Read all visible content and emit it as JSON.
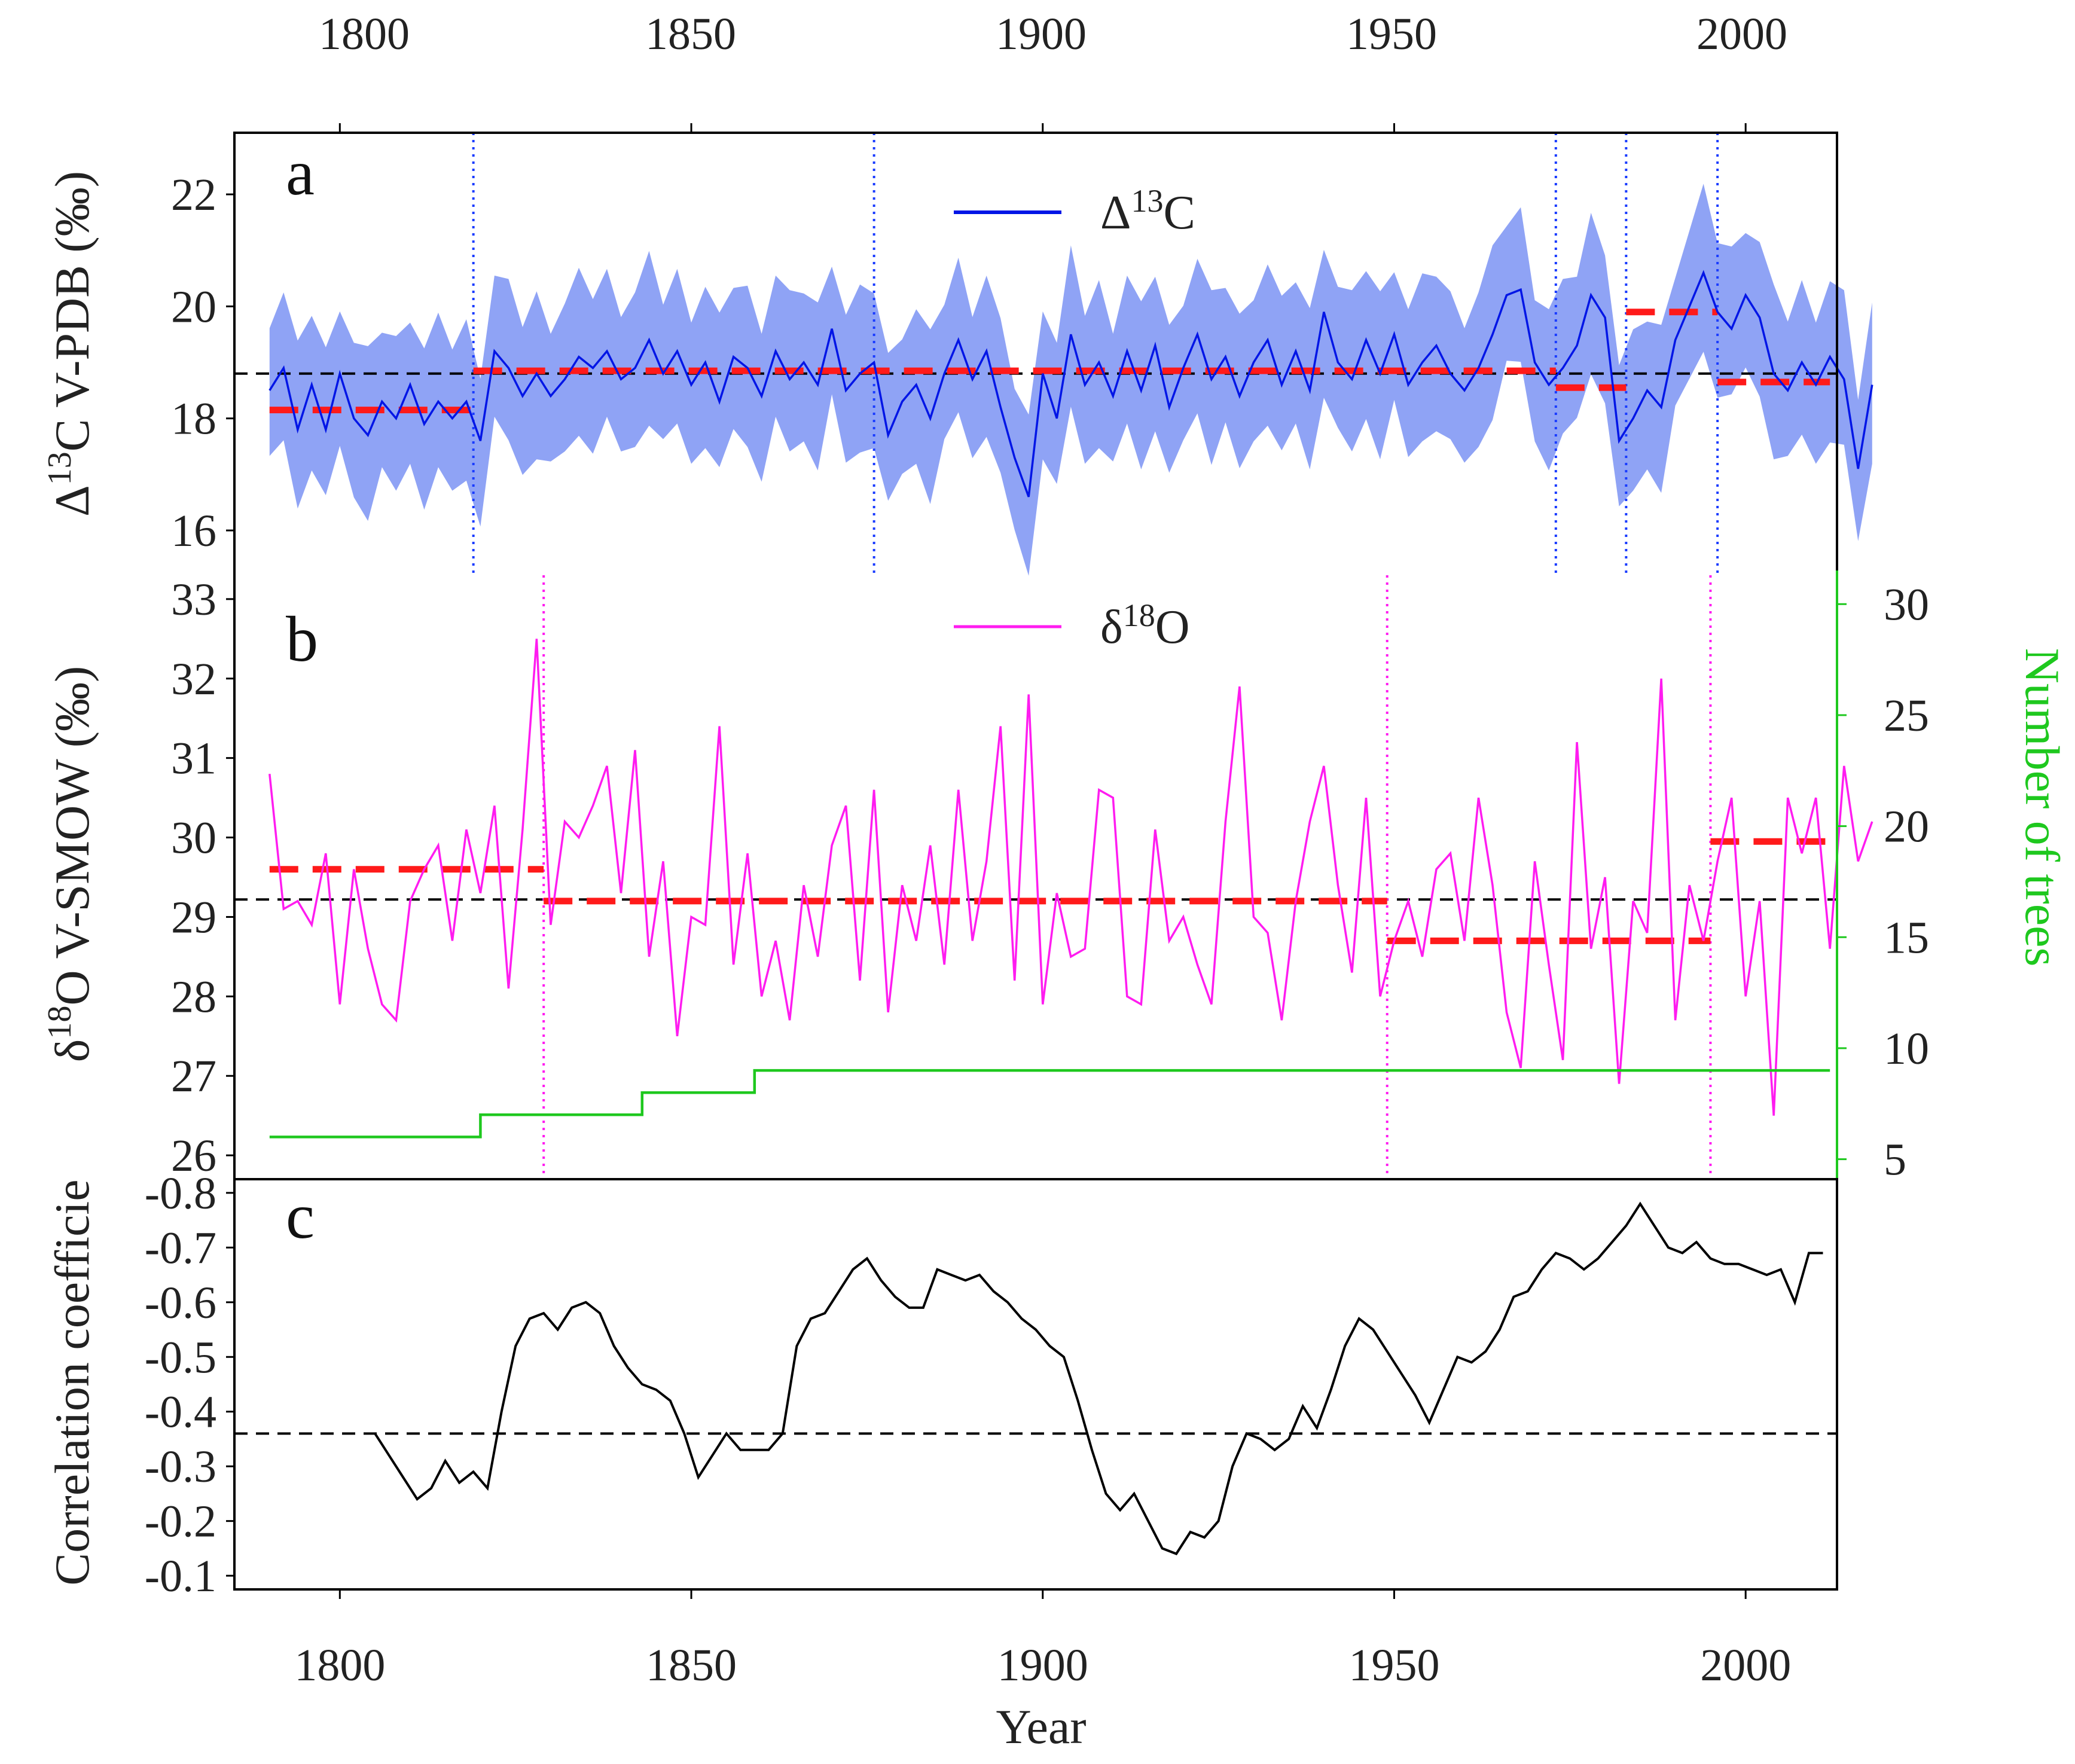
{
  "colors": {
    "d13c_line": "#0015e6",
    "d13c_band": "#8fa3f5",
    "d18o_line": "#ff1cf0",
    "regime": "#ff1a1a",
    "trees": "#1ec81e",
    "corr": "#000000",
    "mean_line": "#000000",
    "frame": "#000000"
  },
  "chart_data": [
    {
      "panel": "a",
      "type": "line",
      "ylabel_prefix": "Δ",
      "ylabel_sup": "13",
      "ylabel_suffix": "C V-PDB (‰)",
      "legend": {
        "prefix": "Δ",
        "sup": "13",
        "suffix": "C",
        "position": "top-center"
      },
      "xlim": [
        1785,
        2013
      ],
      "ylim": [
        15.2,
        23.1
      ],
      "yticks": [
        "16",
        "18",
        "20",
        "22"
      ],
      "ytick_values": [
        16,
        18,
        20,
        22
      ],
      "top_xticks": [
        "1800",
        "1850",
        "1900",
        "1950",
        "2000"
      ],
      "mean": 18.8,
      "change_points": [
        1819,
        1876,
        1973,
        1983,
        1996
      ],
      "regimes": [
        {
          "x0": 1790,
          "x1": 1819,
          "y": 18.15
        },
        {
          "x0": 1819,
          "x1": 1973,
          "y": 18.85
        },
        {
          "x0": 1973,
          "x1": 1983,
          "y": 18.55
        },
        {
          "x0": 1983,
          "x1": 1996,
          "y": 19.9
        },
        {
          "x0": 1996,
          "x1": 2012,
          "y": 18.65
        }
      ],
      "band_halfwidth": 1.35,
      "series": [
        {
          "name": "Δ13C",
          "x_start": 1790,
          "x_step": 2,
          "values": [
            18.5,
            18.9,
            17.8,
            18.6,
            17.8,
            18.8,
            18.0,
            17.7,
            18.3,
            18.0,
            18.6,
            17.9,
            18.3,
            18.0,
            18.3,
            17.6,
            19.2,
            18.9,
            18.4,
            18.8,
            18.4,
            18.7,
            19.1,
            18.9,
            19.2,
            18.7,
            18.9,
            19.4,
            18.8,
            19.2,
            18.6,
            19.0,
            18.3,
            19.1,
            18.9,
            18.4,
            19.2,
            18.7,
            19.0,
            18.6,
            19.6,
            18.5,
            18.8,
            19.0,
            17.7,
            18.3,
            18.6,
            18.0,
            18.8,
            19.4,
            18.7,
            19.2,
            18.2,
            17.3,
            16.6,
            18.8,
            18.0,
            19.5,
            18.6,
            19.0,
            18.4,
            19.2,
            18.5,
            19.3,
            18.2,
            18.9,
            19.5,
            18.7,
            19.1,
            18.4,
            19.0,
            19.4,
            18.6,
            19.2,
            18.5,
            19.9,
            19.0,
            18.7,
            19.4,
            18.8,
            19.5,
            18.6,
            19.0,
            19.3,
            18.8,
            18.5,
            18.9,
            19.5,
            20.2,
            20.3,
            19.0,
            18.6,
            18.9,
            19.3,
            20.2,
            19.8,
            17.6,
            18.0,
            18.5,
            18.2,
            19.4,
            20.0,
            20.6,
            19.9,
            19.6,
            20.2,
            19.8,
            18.8,
            18.5,
            19.0,
            18.6,
            19.1,
            18.7,
            17.1,
            18.6
          ]
        }
      ]
    },
    {
      "panel": "b",
      "type": "line",
      "ylabel_prefix": "δ",
      "ylabel_sup": "18",
      "ylabel_suffix": "O V-SMOW (‰)",
      "legend": {
        "prefix": "δ",
        "sup": "18",
        "suffix": "O",
        "position": "top-center"
      },
      "xlim": [
        1785,
        2013
      ],
      "ylim": [
        25.7,
        33.3
      ],
      "yticks": [
        "26",
        "27",
        "28",
        "29",
        "30",
        "31",
        "32",
        "33"
      ],
      "ytick_values": [
        26,
        27,
        28,
        29,
        30,
        31,
        32,
        33
      ],
      "y2label": "Number of trees",
      "y2lim": [
        4.1,
        31.3
      ],
      "y2ticks": [
        "5",
        "10",
        "15",
        "20",
        "25",
        "30"
      ],
      "y2tick_values": [
        5,
        10,
        15,
        20,
        25,
        30
      ],
      "mean": 29.22,
      "change_points": [
        1829,
        1949,
        1995
      ],
      "regimes": [
        {
          "x0": 1790,
          "x1": 1829,
          "y": 29.6
        },
        {
          "x0": 1829,
          "x1": 1949,
          "y": 29.2
        },
        {
          "x0": 1949,
          "x1": 1995,
          "y": 28.7
        },
        {
          "x0": 1995,
          "x1": 2012,
          "y": 29.95
        }
      ],
      "series": [
        {
          "name": "δ18O",
          "x_start": 1790,
          "x_step": 2,
          "values": [
            30.8,
            29.1,
            29.2,
            28.9,
            29.8,
            27.9,
            29.6,
            28.6,
            27.9,
            27.7,
            29.2,
            29.6,
            29.9,
            28.7,
            30.1,
            29.3,
            30.4,
            28.1,
            30.1,
            32.5,
            28.9,
            30.2,
            30.0,
            30.4,
            30.9,
            29.3,
            31.1,
            28.5,
            29.7,
            27.5,
            29.0,
            28.9,
            31.4,
            28.4,
            29.8,
            28.0,
            28.7,
            27.7,
            29.4,
            28.5,
            29.9,
            30.4,
            28.2,
            30.6,
            27.8,
            29.4,
            28.7,
            29.9,
            28.4,
            30.6,
            28.7,
            29.7,
            31.4,
            28.2,
            31.8,
            27.9,
            29.3,
            28.5,
            28.6,
            30.6,
            30.5,
            28.0,
            27.9,
            30.1,
            28.7,
            29.0,
            28.4,
            27.9,
            30.2,
            31.9,
            29.0,
            28.8,
            27.7,
            29.2,
            30.2,
            30.9,
            29.4,
            28.3,
            30.5,
            28.0,
            28.7,
            29.2,
            28.5,
            29.6,
            29.8,
            28.7,
            30.5,
            29.4,
            27.8,
            27.1,
            29.7,
            28.4,
            27.2,
            31.2,
            28.6,
            29.5,
            26.9,
            29.2,
            28.8,
            32.0,
            27.7,
            29.4,
            28.7,
            29.7,
            30.5,
            28.0,
            29.2,
            26.5,
            30.5,
            29.8,
            30.5,
            28.6,
            30.9,
            29.7,
            30.2
          ]
        },
        {
          "name": "Number of trees",
          "axis": "right",
          "steps": [
            {
              "x0": 1790,
              "x1": 1820,
              "y": 6
            },
            {
              "x0": 1820,
              "x1": 1843,
              "y": 7
            },
            {
              "x0": 1843,
              "x1": 1859,
              "y": 8
            },
            {
              "x0": 1859,
              "x1": 2012,
              "y": 9
            }
          ]
        }
      ]
    },
    {
      "panel": "c",
      "type": "line",
      "ylabel": "Correlation coefficie",
      "xlabel": "Year",
      "xlim": [
        1785,
        2013
      ],
      "xticks": [
        "1800",
        "1850",
        "1900",
        "1950",
        "2000"
      ],
      "xtick_values": [
        1800,
        1850,
        1900,
        1950,
        2000
      ],
      "ylim": [
        -0.825,
        -0.075
      ],
      "y_reversed": true,
      "yticks": [
        "-0.1",
        "-0.2",
        "-0.3",
        "-0.4",
        "-0.5",
        "-0.6",
        "-0.7",
        "-0.8"
      ],
      "ytick_values": [
        -0.1,
        -0.2,
        -0.3,
        -0.4,
        -0.5,
        -0.6,
        -0.7,
        -0.8
      ],
      "threshold": -0.36,
      "series": [
        {
          "name": "Correlation coefficient",
          "x_start": 1805,
          "x_step": 2,
          "values": [
            -0.36,
            -0.32,
            -0.28,
            -0.24,
            -0.26,
            -0.31,
            -0.27,
            -0.29,
            -0.26,
            -0.4,
            -0.52,
            -0.57,
            -0.58,
            -0.55,
            -0.59,
            -0.6,
            -0.58,
            -0.52,
            -0.48,
            -0.45,
            -0.44,
            -0.42,
            -0.36,
            -0.28,
            -0.32,
            -0.36,
            -0.33,
            -0.33,
            -0.33,
            -0.36,
            -0.52,
            -0.57,
            -0.58,
            -0.62,
            -0.66,
            -0.68,
            -0.64,
            -0.61,
            -0.59,
            -0.59,
            -0.66,
            -0.65,
            -0.64,
            -0.65,
            -0.62,
            -0.6,
            -0.57,
            -0.55,
            -0.52,
            -0.5,
            -0.42,
            -0.33,
            -0.25,
            -0.22,
            -0.25,
            -0.2,
            -0.15,
            -0.14,
            -0.18,
            -0.17,
            -0.2,
            -0.3,
            -0.36,
            -0.35,
            -0.33,
            -0.35,
            -0.41,
            -0.37,
            -0.44,
            -0.52,
            -0.57,
            -0.55,
            -0.51,
            -0.47,
            -0.43,
            -0.38,
            -0.44,
            -0.5,
            -0.49,
            -0.51,
            -0.55,
            -0.61,
            -0.62,
            -0.66,
            -0.69,
            -0.68,
            -0.66,
            -0.68,
            -0.71,
            -0.74,
            -0.78,
            -0.74,
            -0.7,
            -0.69,
            -0.71,
            -0.68,
            -0.67,
            -0.67,
            -0.66,
            -0.65,
            -0.66,
            -0.6,
            -0.69,
            -0.69
          ]
        }
      ]
    }
  ]
}
